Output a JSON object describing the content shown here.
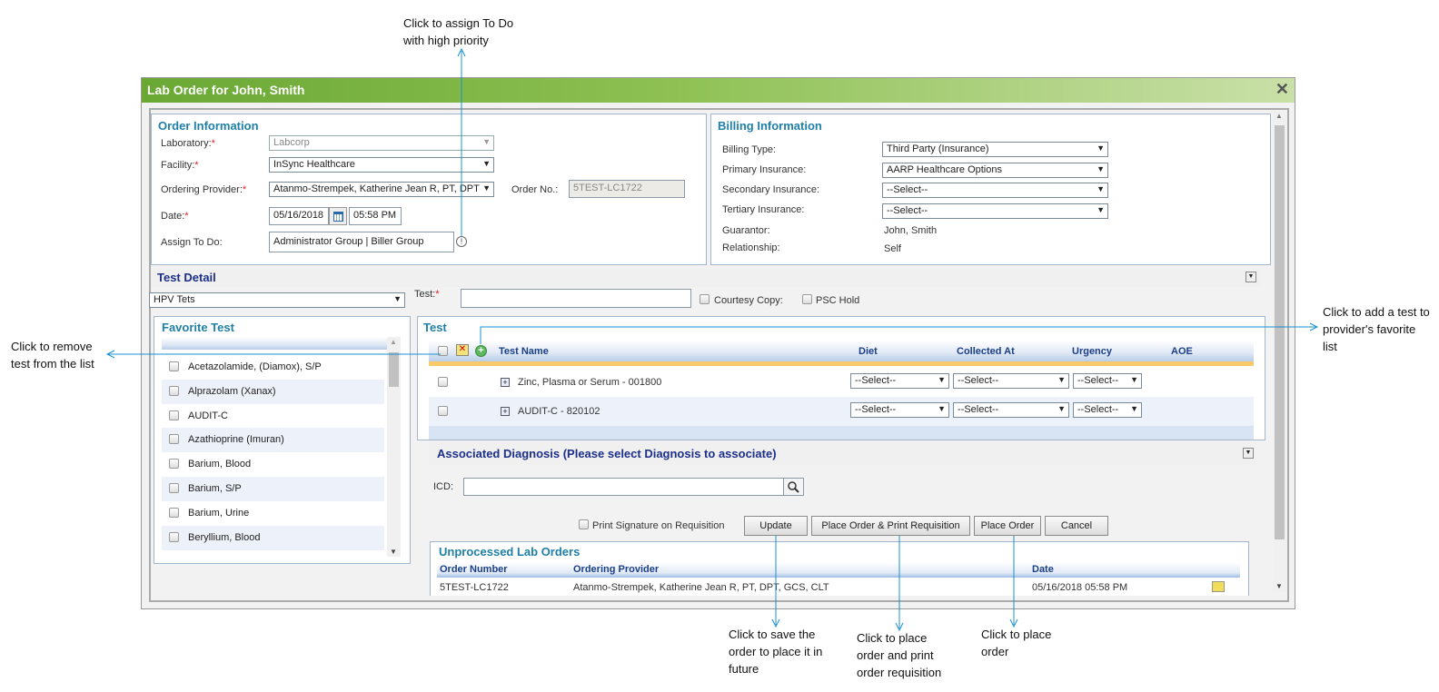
{
  "annotations": {
    "assign_todo": "Click to assign To Do with high priority",
    "add_favorite": "Click to add a test to provider's favorite list",
    "remove_test": "Click to remove test from the list",
    "update": "Click to save the order to place it in future",
    "place_print": "Click to place order and print order requisition",
    "place": "Click to place order"
  },
  "dialog": {
    "title": "Lab Order for John, Smith",
    "close": "✕"
  },
  "order_info": {
    "heading": "Order Information",
    "laboratory_label": "Laboratory:",
    "laboratory": "Labcorp",
    "facility_label": "Facility:",
    "facility": "InSync Healthcare",
    "provider_label": "Ordering Provider:",
    "provider": "Atanmo-Strempek, Katherine Jean R, PT, DPT",
    "order_no_label": "Order No.:",
    "order_no": "5TEST-LC1722",
    "date_label": "Date:",
    "date": "05/16/2018",
    "time": "05:58 PM",
    "assign_label": "Assign To Do:",
    "assign": "Administrator Group | Biller Group",
    "required": "*"
  },
  "billing": {
    "heading": "Billing Information",
    "billing_type_label": "Billing Type:",
    "billing_type": "Third Party (Insurance)",
    "primary_label": "Primary Insurance:",
    "primary": "AARP Healthcare Options",
    "secondary_label": "Secondary Insurance:",
    "secondary": "--Select--",
    "tertiary_label": "Tertiary Insurance:",
    "tertiary": "--Select--",
    "guarantor_label": "Guarantor:",
    "guarantor": "John, Smith",
    "relationship_label": "Relationship:",
    "relationship": "Self"
  },
  "test_detail": {
    "heading": "Test Detail",
    "group": "HPV Tets",
    "test_label": "Test:",
    "test_value": "",
    "courtesy": "Courtesy Copy:",
    "psc": "PSC Hold"
  },
  "favorites": {
    "heading": "Favorite Test",
    "items": [
      "Acetazolamide, (Diamox), S/P",
      "Alprazolam (Xanax)",
      "AUDIT-C",
      "Azathioprine (Imuran)",
      "Barium, Blood",
      "Barium, S/P",
      "Barium, Urine",
      "Beryllium, Blood"
    ]
  },
  "tests": {
    "heading": "Test",
    "columns": {
      "name": "Test Name",
      "diet": "Diet",
      "collected": "Collected At",
      "urgency": "Urgency",
      "aoe": "AOE"
    },
    "rows": [
      {
        "name": "Zinc, Plasma or Serum - 001800",
        "diet": "--Select--",
        "collected": "--Select--",
        "urgency": "--Select--"
      },
      {
        "name": "AUDIT-C - 820102",
        "diet": "--Select--",
        "collected": "--Select--",
        "urgency": "--Select--"
      }
    ]
  },
  "diagnosis": {
    "heading": "Associated Diagnosis (Please select Diagnosis to associate)",
    "icd_label": "ICD:",
    "icd": ""
  },
  "actions": {
    "print_sig": "Print Signature on Requisition",
    "update": "Update",
    "place_print": "Place Order & Print Requisition",
    "place": "Place Order",
    "cancel": "Cancel"
  },
  "unprocessed": {
    "heading": "Unprocessed Lab Orders",
    "columns": {
      "number": "Order Number",
      "provider": "Ordering Provider",
      "date": "Date"
    },
    "rows": [
      {
        "number": "5TEST-LC1722",
        "provider": "Atanmo-Strempek, Katherine Jean R, PT, DPT, GCS, CLT",
        "date": "05/16/2018 05:58 PM"
      }
    ]
  }
}
